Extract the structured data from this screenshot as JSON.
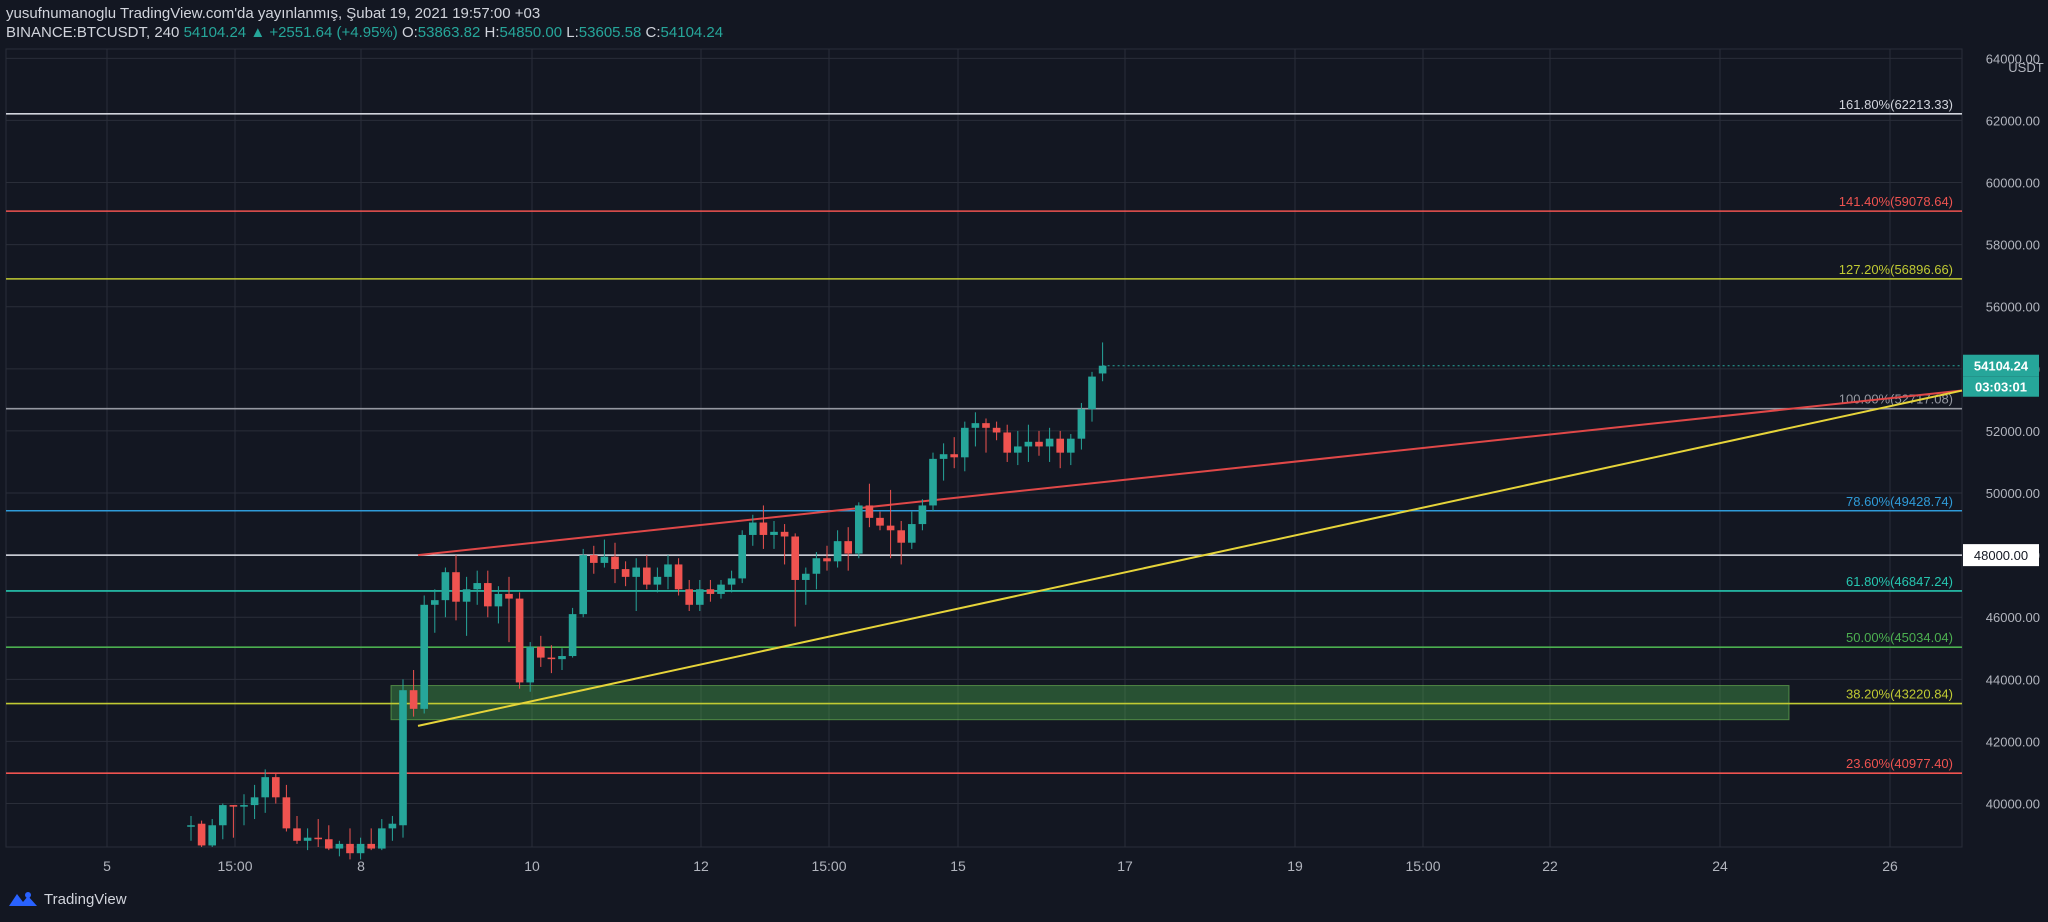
{
  "header": {
    "publisher": "yusufnumanoglu TradingView.com'da yayınlanmış, Şubat 19, 2021 19:57:00 +03",
    "symbol": "BINANCE:BTCUSDT, 240",
    "last": "54104.24",
    "change": "▲ +2551.64 (+4.95%)",
    "o_label": "O:",
    "o_value": "53863.82",
    "h_label": "H:",
    "h_value": "54850.00",
    "l_label": "L:",
    "l_value": "53605.58",
    "c_label": "C:",
    "c_value": "54104.24"
  },
  "footer": {
    "brand": "TradingView",
    "logo_icon": "tradingview-logo-icon"
  },
  "colors": {
    "background": "#131722",
    "grid": "#2a2e39",
    "up": "#26a69a",
    "down": "#ef5350",
    "text": "#d1d4dc",
    "axis_text": "#b2b5be"
  },
  "chart_data": {
    "type": "candlestick",
    "currency": "USDT",
    "ylim": [
      38600,
      64300
    ],
    "y_ticks": [
      40000,
      42000,
      44000,
      46000,
      48000,
      50000,
      52000,
      54000,
      56000,
      58000,
      60000,
      62000,
      64000
    ],
    "x_ticks": [
      "5",
      "15:00",
      "8",
      "10",
      "12",
      "15:00",
      "15",
      "17",
      "19",
      "15:00",
      "22",
      "24",
      "26"
    ],
    "price_label": "54104.24",
    "countdown": "03:03:01",
    "marker_label": "48000.00",
    "candles": [
      {
        "o": 39300,
        "h": 39600,
        "l": 38800,
        "c": 39300
      },
      {
        "o": 39350,
        "h": 39450,
        "l": 38600,
        "c": 38650
      },
      {
        "o": 38650,
        "h": 39500,
        "l": 38600,
        "c": 39300
      },
      {
        "o": 39300,
        "h": 40000,
        "l": 38850,
        "c": 39950
      },
      {
        "o": 39950,
        "h": 39950,
        "l": 38900,
        "c": 39900
      },
      {
        "o": 39900,
        "h": 40300,
        "l": 39300,
        "c": 39950
      },
      {
        "o": 39950,
        "h": 40600,
        "l": 39500,
        "c": 40200
      },
      {
        "o": 40200,
        "h": 41100,
        "l": 39700,
        "c": 40850
      },
      {
        "o": 40850,
        "h": 41000,
        "l": 40000,
        "c": 40200
      },
      {
        "o": 40200,
        "h": 40600,
        "l": 39100,
        "c": 39200
      },
      {
        "o": 39200,
        "h": 39600,
        "l": 38700,
        "c": 38800
      },
      {
        "o": 38800,
        "h": 39200,
        "l": 38500,
        "c": 38900
      },
      {
        "o": 38900,
        "h": 39500,
        "l": 38600,
        "c": 38850
      },
      {
        "o": 38850,
        "h": 39300,
        "l": 38500,
        "c": 38550
      },
      {
        "o": 38550,
        "h": 38800,
        "l": 38300,
        "c": 38700
      },
      {
        "o": 38700,
        "h": 39200,
        "l": 38200,
        "c": 38400
      },
      {
        "o": 38400,
        "h": 38900,
        "l": 38200,
        "c": 38700
      },
      {
        "o": 38700,
        "h": 39200,
        "l": 38500,
        "c": 38550
      },
      {
        "o": 38550,
        "h": 39500,
        "l": 38500,
        "c": 39200
      },
      {
        "o": 39200,
        "h": 39600,
        "l": 38800,
        "c": 39350
      },
      {
        "o": 39300,
        "h": 44000,
        "l": 38900,
        "c": 43650
      },
      {
        "o": 43650,
        "h": 44300,
        "l": 42800,
        "c": 43050
      },
      {
        "o": 43050,
        "h": 46700,
        "l": 42900,
        "c": 46400
      },
      {
        "o": 46400,
        "h": 46900,
        "l": 45500,
        "c": 46550
      },
      {
        "o": 46550,
        "h": 47600,
        "l": 46000,
        "c": 47450
      },
      {
        "o": 47450,
        "h": 48000,
        "l": 45900,
        "c": 46500
      },
      {
        "o": 46500,
        "h": 47300,
        "l": 45400,
        "c": 46900
      },
      {
        "o": 46900,
        "h": 47500,
        "l": 46400,
        "c": 47100
      },
      {
        "o": 47100,
        "h": 47500,
        "l": 46000,
        "c": 46350
      },
      {
        "o": 46350,
        "h": 47000,
        "l": 45800,
        "c": 46750
      },
      {
        "o": 46750,
        "h": 47300,
        "l": 45200,
        "c": 46600
      },
      {
        "o": 46600,
        "h": 46800,
        "l": 43700,
        "c": 43900
      },
      {
        "o": 43900,
        "h": 45200,
        "l": 43600,
        "c": 45050
      },
      {
        "o": 45050,
        "h": 45400,
        "l": 44400,
        "c": 44700
      },
      {
        "o": 44700,
        "h": 45100,
        "l": 44200,
        "c": 44650
      },
      {
        "o": 44650,
        "h": 45000,
        "l": 44300,
        "c": 44750
      },
      {
        "o": 44750,
        "h": 46300,
        "l": 44700,
        "c": 46100
      },
      {
        "o": 46100,
        "h": 48200,
        "l": 46000,
        "c": 48000
      },
      {
        "o": 48000,
        "h": 48300,
        "l": 47400,
        "c": 47750
      },
      {
        "o": 47750,
        "h": 48500,
        "l": 47600,
        "c": 47950
      },
      {
        "o": 47950,
        "h": 48400,
        "l": 47100,
        "c": 47550
      },
      {
        "o": 47550,
        "h": 47800,
        "l": 47000,
        "c": 47300
      },
      {
        "o": 47300,
        "h": 47900,
        "l": 46200,
        "c": 47600
      },
      {
        "o": 47600,
        "h": 48000,
        "l": 46900,
        "c": 47050
      },
      {
        "o": 47050,
        "h": 47600,
        "l": 46800,
        "c": 47300
      },
      {
        "o": 47300,
        "h": 48000,
        "l": 46900,
        "c": 47700
      },
      {
        "o": 47700,
        "h": 47900,
        "l": 46700,
        "c": 46900
      },
      {
        "o": 46900,
        "h": 47200,
        "l": 46200,
        "c": 46400
      },
      {
        "o": 46400,
        "h": 47200,
        "l": 46200,
        "c": 46900
      },
      {
        "o": 46900,
        "h": 47200,
        "l": 46500,
        "c": 46750
      },
      {
        "o": 46750,
        "h": 47200,
        "l": 46600,
        "c": 47050
      },
      {
        "o": 47050,
        "h": 47500,
        "l": 46800,
        "c": 47250
      },
      {
        "o": 47250,
        "h": 48800,
        "l": 47100,
        "c": 48650
      },
      {
        "o": 48650,
        "h": 49300,
        "l": 48300,
        "c": 49050
      },
      {
        "o": 49050,
        "h": 49600,
        "l": 48200,
        "c": 48650
      },
      {
        "o": 48650,
        "h": 49100,
        "l": 48200,
        "c": 48750
      },
      {
        "o": 48750,
        "h": 49000,
        "l": 47700,
        "c": 48600
      },
      {
        "o": 48600,
        "h": 48700,
        "l": 45700,
        "c": 47200
      },
      {
        "o": 47200,
        "h": 47600,
        "l": 46400,
        "c": 47400
      },
      {
        "o": 47400,
        "h": 48100,
        "l": 46900,
        "c": 47900
      },
      {
        "o": 47900,
        "h": 48300,
        "l": 47500,
        "c": 47800
      },
      {
        "o": 47800,
        "h": 48800,
        "l": 47600,
        "c": 48450
      },
      {
        "o": 48450,
        "h": 48900,
        "l": 47500,
        "c": 48050
      },
      {
        "o": 48050,
        "h": 49700,
        "l": 47900,
        "c": 49600
      },
      {
        "o": 49600,
        "h": 50300,
        "l": 48900,
        "c": 49200
      },
      {
        "o": 49200,
        "h": 49400,
        "l": 48800,
        "c": 48950
      },
      {
        "o": 48950,
        "h": 50100,
        "l": 47900,
        "c": 48800
      },
      {
        "o": 48800,
        "h": 49100,
        "l": 47700,
        "c": 48400
      },
      {
        "o": 48400,
        "h": 49400,
        "l": 48200,
        "c": 49000
      },
      {
        "o": 49000,
        "h": 49800,
        "l": 48800,
        "c": 49600
      },
      {
        "o": 49600,
        "h": 51300,
        "l": 49400,
        "c": 51100
      },
      {
        "o": 51100,
        "h": 51600,
        "l": 50400,
        "c": 51250
      },
      {
        "o": 51250,
        "h": 51800,
        "l": 50800,
        "c": 51150
      },
      {
        "o": 51150,
        "h": 52300,
        "l": 50700,
        "c": 52100
      },
      {
        "o": 52100,
        "h": 52600,
        "l": 51500,
        "c": 52250
      },
      {
        "o": 52250,
        "h": 52400,
        "l": 51300,
        "c": 52100
      },
      {
        "o": 52100,
        "h": 52300,
        "l": 51700,
        "c": 51950
      },
      {
        "o": 51950,
        "h": 52200,
        "l": 51000,
        "c": 51300
      },
      {
        "o": 51300,
        "h": 52000,
        "l": 50900,
        "c": 51500
      },
      {
        "o": 51500,
        "h": 52200,
        "l": 51000,
        "c": 51650
      },
      {
        "o": 51650,
        "h": 52000,
        "l": 51200,
        "c": 51500
      },
      {
        "o": 51500,
        "h": 52100,
        "l": 51000,
        "c": 51750
      },
      {
        "o": 51750,
        "h": 52000,
        "l": 50800,
        "c": 51300
      },
      {
        "o": 51300,
        "h": 51900,
        "l": 50900,
        "c": 51750
      },
      {
        "o": 51750,
        "h": 52900,
        "l": 51400,
        "c": 52700
      },
      {
        "o": 52700,
        "h": 53900,
        "l": 52300,
        "c": 53750
      },
      {
        "o": 53850,
        "h": 54850,
        "l": 53600,
        "c": 54100
      }
    ],
    "fib_levels": [
      {
        "label": "161.80%(62213.33)",
        "price": 62213.33,
        "color": "#d1d4dc"
      },
      {
        "label": "141.40%(59078.64)",
        "price": 59078.64,
        "color": "#ef5350"
      },
      {
        "label": "127.20%(56896.66)",
        "price": 56896.66,
        "color": "#c0ca33"
      },
      {
        "label": "100.00%(52717.08)",
        "price": 52717.08,
        "color": "#9598a1"
      },
      {
        "label": "78.60%(49428.74)",
        "price": 49428.74,
        "color": "#2f9bd8"
      },
      {
        "label": "61.80%(46847.24)",
        "price": 46847.24,
        "color": "#26c6b0"
      },
      {
        "label": "50.00%(45034.04)",
        "price": 45034.04,
        "color": "#4caf50"
      },
      {
        "label": "38.20%(43220.84)",
        "price": 43220.84,
        "color": "#c0ca33"
      },
      {
        "label": "23.60%(40977.40)",
        "price": 40977.4,
        "color": "#ef5350"
      }
    ]
  }
}
